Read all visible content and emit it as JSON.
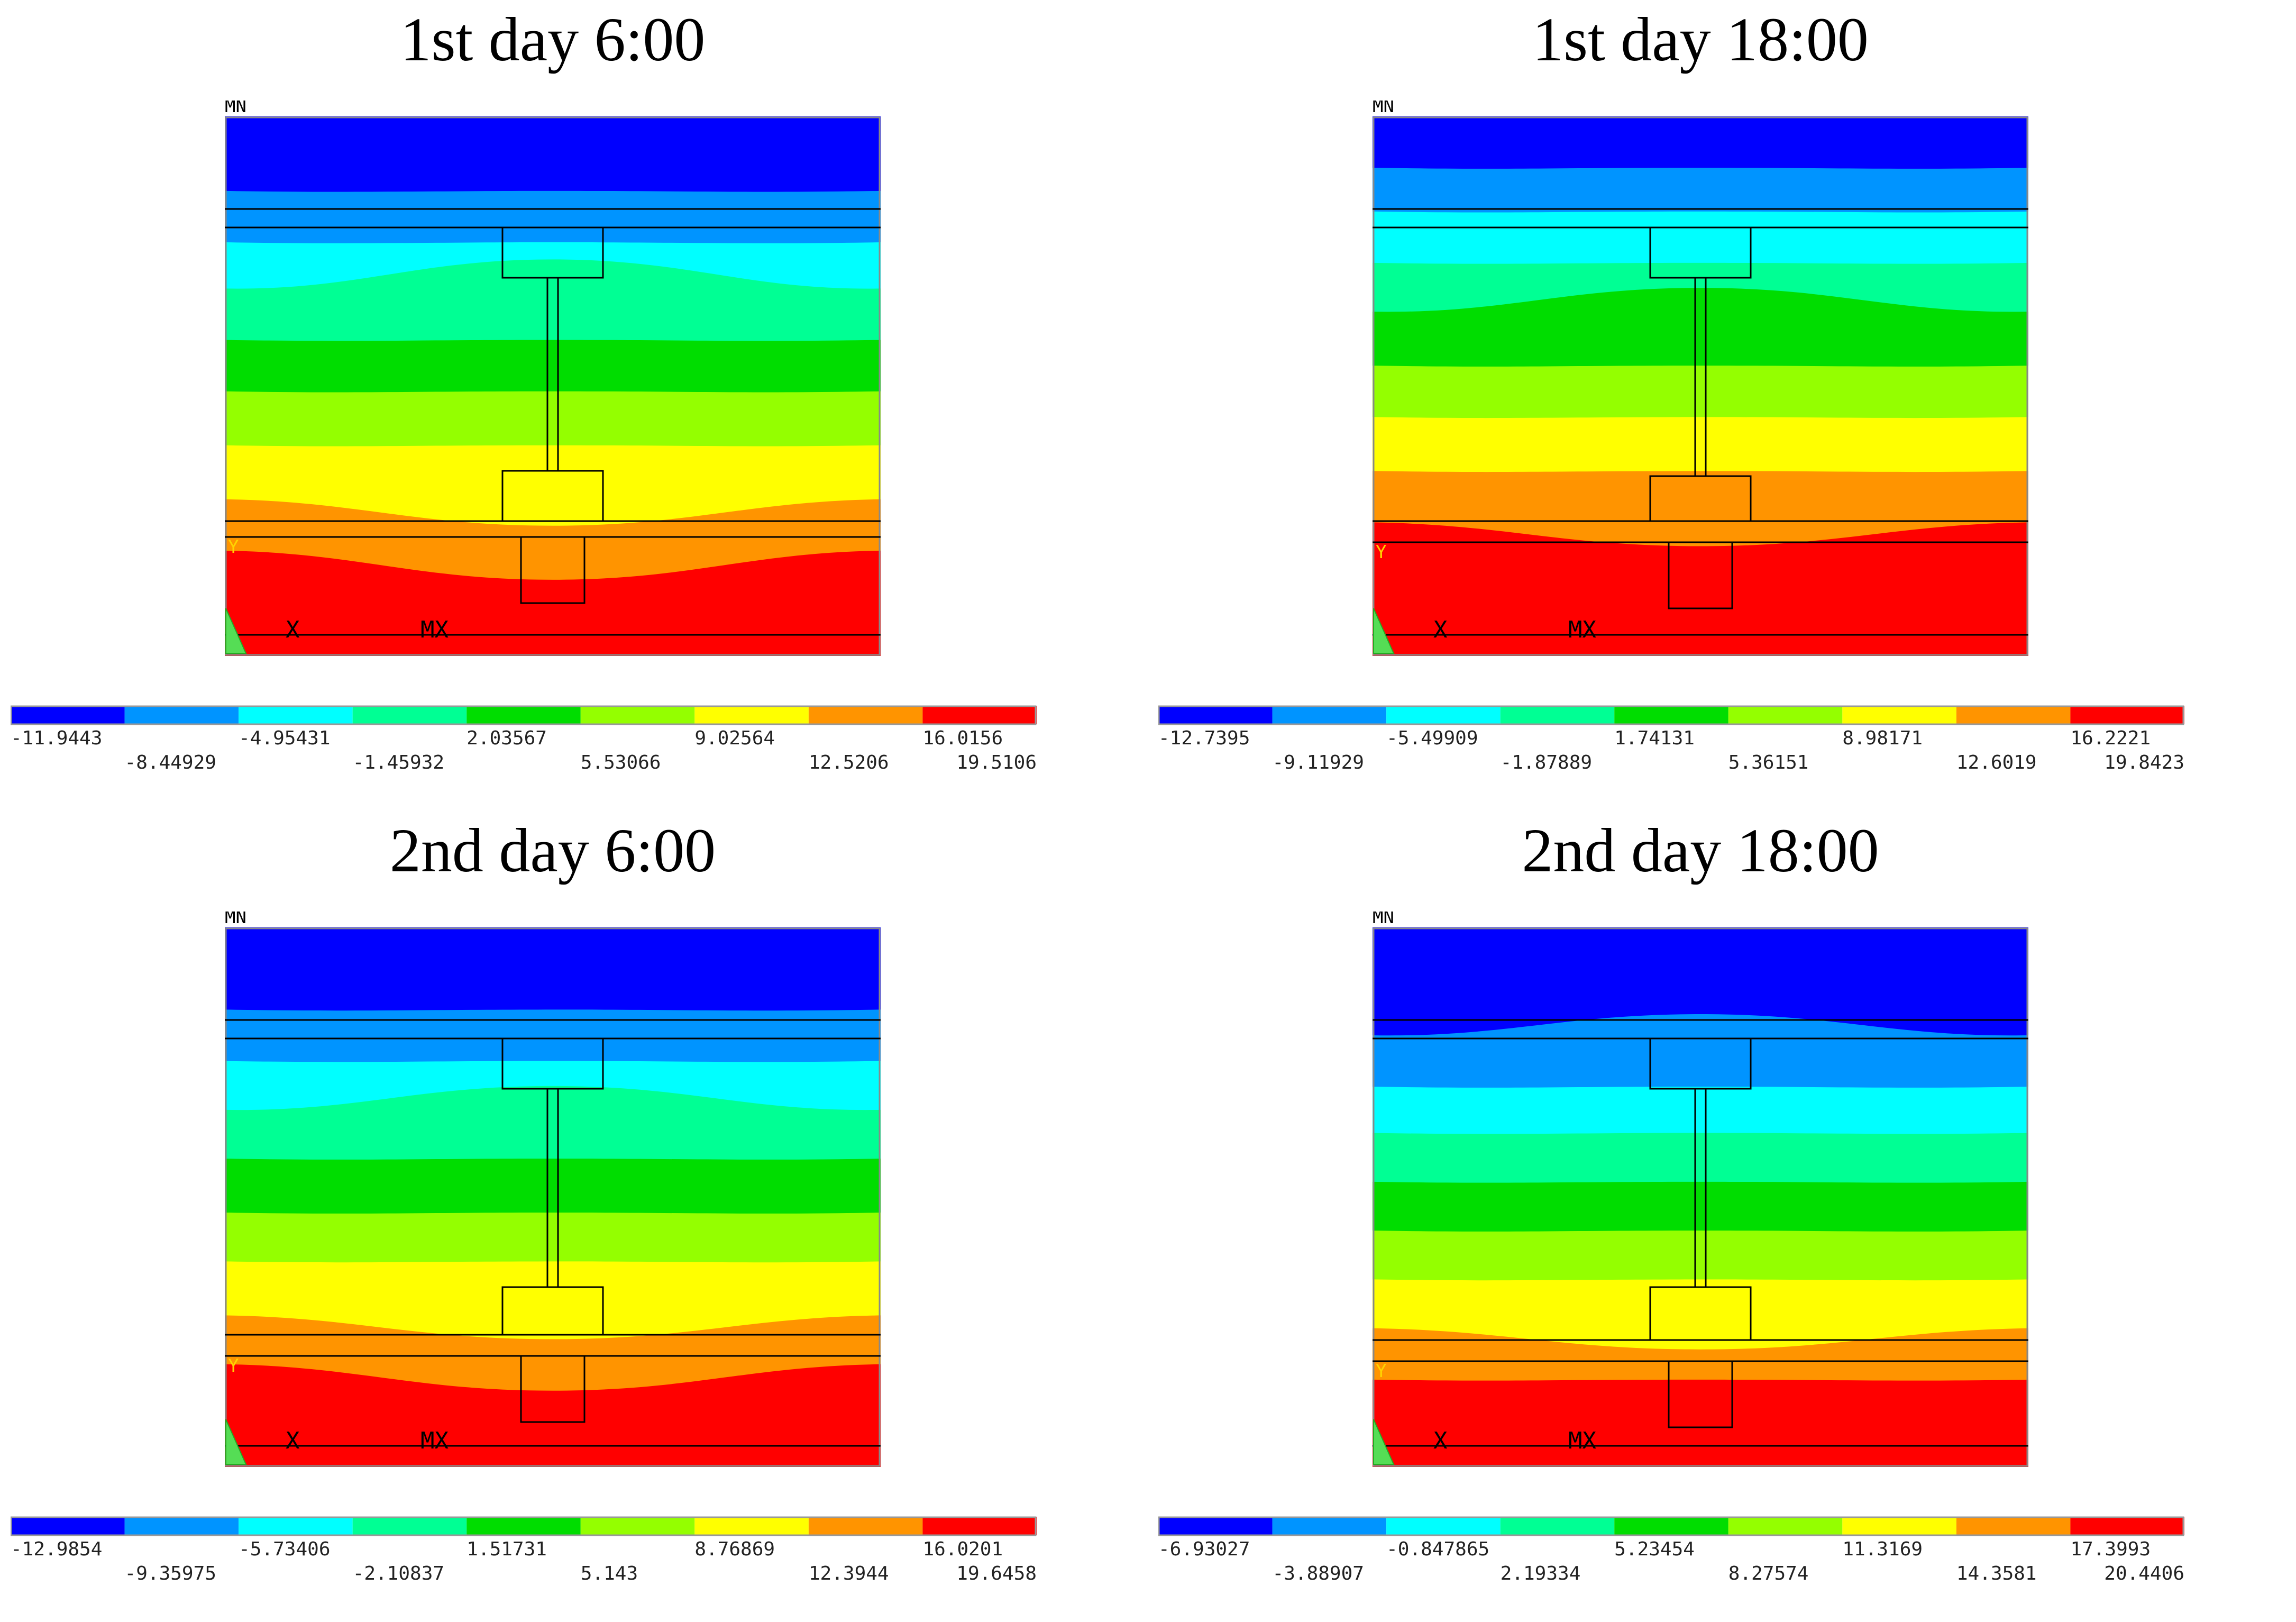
{
  "figure": {
    "panels": [
      {
        "title": "1st day 6:00",
        "mn_label": "MN",
        "mx_label": "MX",
        "x_axis": "X",
        "y_axis": "Y",
        "levels": [
          "-11.9443",
          "-8.44929",
          "-4.95431",
          "-1.45932",
          "2.03567",
          "5.53066",
          "9.02564",
          "12.5206",
          "16.0156",
          "19.5106"
        ]
      },
      {
        "title": "1st day 18:00",
        "mn_label": "MN",
        "mx_label": "MX",
        "x_axis": "X",
        "y_axis": "Y",
        "levels": [
          "-12.7395",
          "-9.11929",
          "-5.49909",
          "-1.87889",
          "1.74131",
          "5.36151",
          "8.98171",
          "12.6019",
          "16.2221",
          "19.8423"
        ]
      },
      {
        "title": "2nd day 6:00",
        "mn_label": "MN",
        "mx_label": "MX",
        "x_axis": "X",
        "y_axis": "Y",
        "levels": [
          "-12.9854",
          "-9.35975",
          "-5.73406",
          "-2.10837",
          "1.51731",
          "5.143",
          "8.76869",
          "12.3944",
          "16.0201",
          "19.6458"
        ]
      },
      {
        "title": "2nd day 18:00",
        "mn_label": "MN",
        "mx_label": "MX",
        "x_axis": "X",
        "y_axis": "Y",
        "levels": [
          "-6.93027",
          "-3.88907",
          "-0.847865",
          "2.19334",
          "5.23454",
          "8.27574",
          "11.3169",
          "14.3581",
          "17.3993",
          "20.4406"
        ]
      }
    ],
    "colors": [
      "#0000ff",
      "#0094ff",
      "#00ffff",
      "#00ff94",
      "#00dd00",
      "#94ff00",
      "#ffff00",
      "#ff9400",
      "#ff0000"
    ]
  }
}
